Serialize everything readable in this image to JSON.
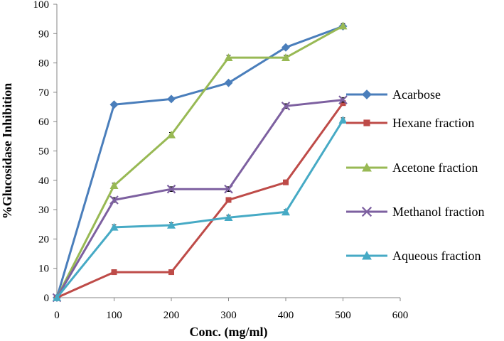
{
  "chart_data": {
    "type": "line",
    "title": "",
    "xlabel": "Conc.  (mg/ml)",
    "ylabel": "%Glucosidase Inhibition",
    "xlim": [
      0,
      600
    ],
    "ylim": [
      0,
      100
    ],
    "xticks": [
      0,
      100,
      200,
      300,
      400,
      500,
      600
    ],
    "yticks": [
      0,
      10,
      20,
      30,
      40,
      50,
      60,
      70,
      80,
      90,
      100
    ],
    "grid": false,
    "legend_position": "right",
    "x": [
      0,
      100,
      200,
      300,
      400,
      500
    ],
    "series": [
      {
        "name": "Acarbose",
        "color": "#4a7ebb",
        "marker": "diamond",
        "values": [
          0,
          65.8,
          67.7,
          73.2,
          85.3,
          92.5
        ],
        "errors": [
          0,
          0.6,
          0.6,
          0.6,
          0.6,
          0.6
        ]
      },
      {
        "name": "Hexane fraction",
        "color": "#be4b48",
        "marker": "square",
        "values": [
          0,
          8.7,
          8.7,
          33.3,
          39.3,
          66.3
        ],
        "errors": [
          0,
          0.8,
          0.8,
          0.8,
          0.8,
          0.8
        ]
      },
      {
        "name": "Acetone fraction",
        "color": "#98b954",
        "marker": "triangle",
        "values": [
          0,
          38.2,
          55.5,
          81.8,
          81.8,
          92.6
        ],
        "errors": [
          0,
          0.8,
          0.8,
          0.8,
          0.8,
          0.8
        ]
      },
      {
        "name": "Methanol fraction",
        "color": "#7d60a0",
        "marker": "x",
        "values": [
          0,
          33.3,
          37.0,
          37.0,
          65.3,
          67.4
        ],
        "errors": [
          0,
          0.8,
          0.8,
          0.8,
          0.8,
          0.8
        ]
      },
      {
        "name": "Aqueous fraction",
        "color": "#46aac5",
        "marker": "triangle",
        "values": [
          0,
          24.0,
          24.7,
          27.3,
          29.2,
          60.5
        ],
        "errors": [
          0,
          0.8,
          0.8,
          0.8,
          0.8,
          0.8
        ]
      }
    ]
  }
}
